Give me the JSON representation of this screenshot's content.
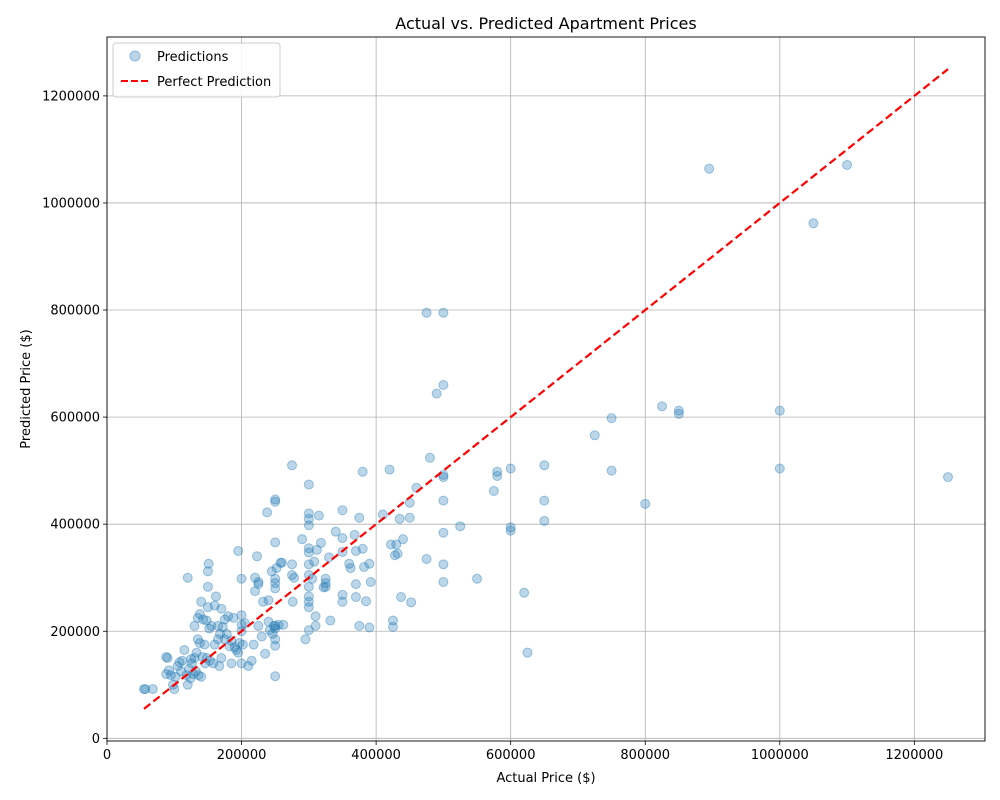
{
  "chart_data": {
    "type": "scatter",
    "title": "Actual vs. Predicted Apartment Prices",
    "xlabel": "Actual Price ($)",
    "ylabel": "Predicted Price ($)",
    "xlim": [
      0,
      1305000
    ],
    "ylim": [
      -5000,
      1310000
    ],
    "xticks": [
      0,
      200000,
      400000,
      600000,
      800000,
      1000000,
      1200000
    ],
    "yticks": [
      0,
      200000,
      400000,
      600000,
      800000,
      1000000,
      1200000
    ],
    "xtick_labels": [
      "0",
      "200000",
      "400000",
      "600000",
      "800000",
      "1000000",
      "1200000"
    ],
    "ytick_labels": [
      "0",
      "200000",
      "400000",
      "600000",
      "800000",
      "1000000",
      "1200000"
    ],
    "grid": true,
    "legend_position": "top-left",
    "colors": {
      "points": "#1f77b4",
      "line": "#ff0000"
    },
    "series": [
      {
        "name": "Predictions",
        "kind": "scatter",
        "points": [
          [
            55000,
            92000
          ],
          [
            57000,
            92000
          ],
          [
            68000,
            92000
          ],
          [
            88000,
            120000
          ],
          [
            88000,
            152000
          ],
          [
            90000,
            150000
          ],
          [
            92000,
            127000
          ],
          [
            95000,
            118000
          ],
          [
            98000,
            100000
          ],
          [
            100000,
            92000
          ],
          [
            102000,
            115000
          ],
          [
            105000,
            135000
          ],
          [
            108000,
            142000
          ],
          [
            110000,
            125000
          ],
          [
            112000,
            145000
          ],
          [
            115000,
            165000
          ],
          [
            118000,
            118000
          ],
          [
            120000,
            100000
          ],
          [
            120000,
            300000
          ],
          [
            122000,
            130000
          ],
          [
            124000,
            112000
          ],
          [
            125000,
            148000
          ],
          [
            126000,
            140000
          ],
          [
            128000,
            120000
          ],
          [
            130000,
            210000
          ],
          [
            130000,
            150000
          ],
          [
            132000,
            125000
          ],
          [
            133000,
            160000
          ],
          [
            135000,
            185000
          ],
          [
            135000,
            225000
          ],
          [
            136000,
            118000
          ],
          [
            138000,
            178000
          ],
          [
            138000,
            232000
          ],
          [
            140000,
            255000
          ],
          [
            140000,
            115000
          ],
          [
            142000,
            152000
          ],
          [
            143000,
            222000
          ],
          [
            145000,
            175000
          ],
          [
            146000,
            140000
          ],
          [
            148000,
            150000
          ],
          [
            148000,
            220000
          ],
          [
            150000,
            245000
          ],
          [
            150000,
            283000
          ],
          [
            150000,
            312000
          ],
          [
            151000,
            326000
          ],
          [
            152000,
            205000
          ],
          [
            153000,
            145000
          ],
          [
            155000,
            210000
          ],
          [
            158000,
            140000
          ],
          [
            160000,
            175000
          ],
          [
            160000,
            248000
          ],
          [
            162000,
            265000
          ],
          [
            165000,
            185000
          ],
          [
            165000,
            210000
          ],
          [
            167000,
            135000
          ],
          [
            168000,
            195000
          ],
          [
            170000,
            150000
          ],
          [
            170000,
            242000
          ],
          [
            172000,
            208000
          ],
          [
            175000,
            222000
          ],
          [
            175000,
            185000
          ],
          [
            178000,
            195000
          ],
          [
            180000,
            228000
          ],
          [
            182000,
            172000
          ],
          [
            185000,
            140000
          ],
          [
            185000,
            182000
          ],
          [
            188000,
            225000
          ],
          [
            190000,
            170000
          ],
          [
            192000,
            165000
          ],
          [
            195000,
            350000
          ],
          [
            195000,
            160000
          ],
          [
            197000,
            178000
          ],
          [
            200000,
            200000
          ],
          [
            200000,
            212000
          ],
          [
            200000,
            140000
          ],
          [
            200000,
            298000
          ],
          [
            200000,
            230000
          ],
          [
            202000,
            175000
          ],
          [
            205000,
            215000
          ],
          [
            210000,
            135000
          ],
          [
            215000,
            145000
          ],
          [
            218000,
            175000
          ],
          [
            220000,
            275000
          ],
          [
            220000,
            300000
          ],
          [
            223000,
            340000
          ],
          [
            225000,
            288000
          ],
          [
            225000,
            292000
          ],
          [
            225000,
            210000
          ],
          [
            230000,
            190000
          ],
          [
            232000,
            255000
          ],
          [
            235000,
            158000
          ],
          [
            238000,
            422000
          ],
          [
            240000,
            258000
          ],
          [
            240000,
            218000
          ],
          [
            242000,
            202000
          ],
          [
            245000,
            312000
          ],
          [
            246000,
            195000
          ],
          [
            248000,
            210000
          ],
          [
            250000,
            442000
          ],
          [
            250000,
            446000
          ],
          [
            250000,
            366000
          ],
          [
            250000,
            298000
          ],
          [
            250000,
            290000
          ],
          [
            250000,
            280000
          ],
          [
            250000,
            210000
          ],
          [
            250000,
            205000
          ],
          [
            250000,
            185000
          ],
          [
            250000,
            173000
          ],
          [
            250000,
            116000
          ],
          [
            252000,
            318000
          ],
          [
            255000,
            212000
          ],
          [
            258000,
            328000
          ],
          [
            260000,
            328000
          ],
          [
            262000,
            212000
          ],
          [
            275000,
            510000
          ],
          [
            275000,
            305000
          ],
          [
            275000,
            325000
          ],
          [
            276000,
            255000
          ],
          [
            278000,
            300000
          ],
          [
            290000,
            372000
          ],
          [
            295000,
            185000
          ],
          [
            300000,
            474000
          ],
          [
            300000,
            420000
          ],
          [
            300000,
            410000
          ],
          [
            300000,
            398000
          ],
          [
            300000,
            355000
          ],
          [
            300000,
            347000
          ],
          [
            300000,
            325000
          ],
          [
            300000,
            305000
          ],
          [
            300000,
            283000
          ],
          [
            300000,
            265000
          ],
          [
            300000,
            255000
          ],
          [
            300000,
            245000
          ],
          [
            300000,
            202000
          ],
          [
            305000,
            298000
          ],
          [
            308000,
            330000
          ],
          [
            310000,
            210000
          ],
          [
            310000,
            228000
          ],
          [
            312000,
            352000
          ],
          [
            315000,
            416000
          ],
          [
            318000,
            365000
          ],
          [
            322000,
            282000
          ],
          [
            325000,
            298000
          ],
          [
            325000,
            290000
          ],
          [
            325000,
            283000
          ],
          [
            330000,
            338000
          ],
          [
            332000,
            220000
          ],
          [
            340000,
            386000
          ],
          [
            350000,
            426000
          ],
          [
            350000,
            374000
          ],
          [
            350000,
            348000
          ],
          [
            350000,
            268000
          ],
          [
            350000,
            255000
          ],
          [
            360000,
            326000
          ],
          [
            362000,
            318000
          ],
          [
            368000,
            380000
          ],
          [
            370000,
            350000
          ],
          [
            370000,
            288000
          ],
          [
            370000,
            264000
          ],
          [
            375000,
            210000
          ],
          [
            375000,
            412000
          ],
          [
            380000,
            498000
          ],
          [
            380000,
            354000
          ],
          [
            382000,
            320000
          ],
          [
            385000,
            256000
          ],
          [
            390000,
            207000
          ],
          [
            390000,
            326000
          ],
          [
            392000,
            292000
          ],
          [
            410000,
            418000
          ],
          [
            420000,
            502000
          ],
          [
            422000,
            362000
          ],
          [
            425000,
            220000
          ],
          [
            425000,
            208000
          ],
          [
            428000,
            342000
          ],
          [
            430000,
            362000
          ],
          [
            432000,
            345000
          ],
          [
            435000,
            410000
          ],
          [
            437000,
            264000
          ],
          [
            440000,
            372000
          ],
          [
            450000,
            440000
          ],
          [
            450000,
            412000
          ],
          [
            452000,
            254000
          ],
          [
            460000,
            468000
          ],
          [
            475000,
            795000
          ],
          [
            475000,
            335000
          ],
          [
            480000,
            524000
          ],
          [
            490000,
            644000
          ],
          [
            500000,
            795000
          ],
          [
            500000,
            660000
          ],
          [
            500000,
            492000
          ],
          [
            500000,
            488000
          ],
          [
            500000,
            444000
          ],
          [
            500000,
            384000
          ],
          [
            500000,
            325000
          ],
          [
            500000,
            292000
          ],
          [
            525000,
            396000
          ],
          [
            550000,
            298000
          ],
          [
            575000,
            462000
          ],
          [
            580000,
            498000
          ],
          [
            580000,
            490000
          ],
          [
            600000,
            504000
          ],
          [
            600000,
            394000
          ],
          [
            600000,
            388000
          ],
          [
            620000,
            272000
          ],
          [
            625000,
            160000
          ],
          [
            650000,
            510000
          ],
          [
            650000,
            444000
          ],
          [
            650000,
            406000
          ],
          [
            725000,
            566000
          ],
          [
            750000,
            598000
          ],
          [
            750000,
            500000
          ],
          [
            800000,
            438000
          ],
          [
            825000,
            620000
          ],
          [
            850000,
            612000
          ],
          [
            850000,
            606000
          ],
          [
            895000,
            1064000
          ],
          [
            1000000,
            612000
          ],
          [
            1000000,
            504000
          ],
          [
            1050000,
            962000
          ],
          [
            1100000,
            1071000
          ],
          [
            1250000,
            488000
          ]
        ]
      },
      {
        "name": "Perfect Prediction",
        "kind": "line",
        "points": [
          [
            55000,
            55000
          ],
          [
            1250000,
            1250000
          ]
        ]
      }
    ]
  }
}
